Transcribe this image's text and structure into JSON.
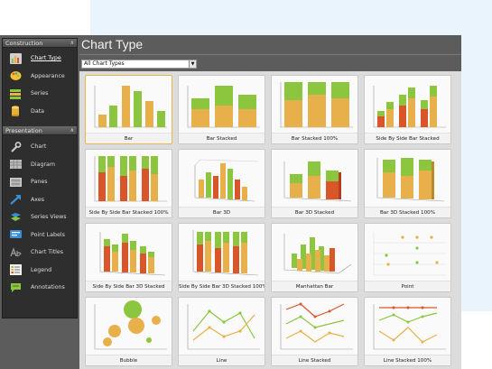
{
  "header": {
    "title": "Chart Type"
  },
  "filter": {
    "value": "All Chart Types"
  },
  "sidebar": {
    "groups": [
      {
        "label": "Construction",
        "items": [
          {
            "label": "Chart Type",
            "icon": "bar-chart-icon"
          },
          {
            "label": "Appearance",
            "icon": "palette-icon"
          },
          {
            "label": "Series",
            "icon": "series-icon"
          },
          {
            "label": "Data",
            "icon": "database-icon"
          }
        ]
      },
      {
        "label": "Presentation",
        "items": [
          {
            "label": "Chart",
            "icon": "wrench-icon"
          },
          {
            "label": "Diagram",
            "icon": "diagram-icon"
          },
          {
            "label": "Panes",
            "icon": "panes-icon"
          },
          {
            "label": "Axes",
            "icon": "axes-arrow-icon"
          },
          {
            "label": "Series Views",
            "icon": "series-views-icon"
          },
          {
            "label": "Point Labels",
            "icon": "point-labels-icon"
          },
          {
            "label": "Chart Titles",
            "icon": "chart-titles-icon"
          },
          {
            "label": "Legend",
            "icon": "legend-icon"
          },
          {
            "label": "Annotations",
            "icon": "annotations-icon"
          }
        ]
      }
    ]
  },
  "gallery": {
    "items": [
      {
        "label": "Bar"
      },
      {
        "label": "Bar Stacked"
      },
      {
        "label": "Bar Stacked 100%"
      },
      {
        "label": "Side By Side Bar Stacked"
      },
      {
        "label": "Side By Side Bar Stacked 100%"
      },
      {
        "label": "Bar 3D"
      },
      {
        "label": "Bar 3D Stacked"
      },
      {
        "label": "Bar 3D Stacked 100%"
      },
      {
        "label": "Side By Side Bar 3D Stacked"
      },
      {
        "label": "Side By Side Bar 3D Stacked 100%"
      },
      {
        "label": "Manhattan Bar"
      },
      {
        "label": "Point"
      },
      {
        "label": "Bubble"
      },
      {
        "label": "Line"
      },
      {
        "label": "Line Stacked"
      },
      {
        "label": "Line Stacked 100%"
      }
    ]
  },
  "colors": {
    "green": "#8cc63f",
    "orange": "#e8b04a",
    "red": "#d9562b",
    "sidebar": "#2e2e2e",
    "panel": "#5c5c5c"
  }
}
